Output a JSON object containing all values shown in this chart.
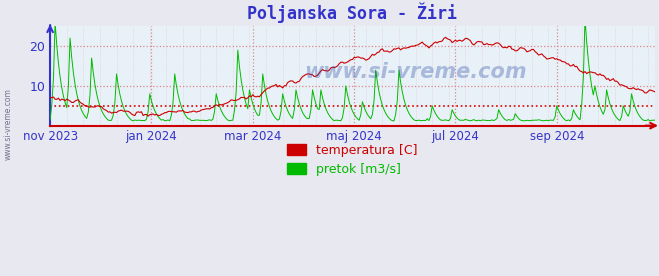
{
  "title": "Poljanska Sora - Žiri",
  "title_color": "#3333cc",
  "title_fontsize": 12,
  "bg_color": "#e8e8f0",
  "plot_bg_color": "#e8f0f8",
  "temp_color": "#cc0000",
  "flow_color": "#00bb00",
  "hline_color": "#dd0000",
  "hline_y": 5.0,
  "grid_color": "#dd8888",
  "ylim": [
    0,
    25
  ],
  "yticks": [
    10,
    20
  ],
  "xlabel_color": "#3333cc",
  "ylabel_color": "#3333cc",
  "x_labels": [
    "nov 2023",
    "jan 2024",
    "mar 2024",
    "maj 2024",
    "jul 2024",
    "sep 2024"
  ],
  "watermark_side": "www.si-vreme.com",
  "watermark_center": "www.si-vreme.com",
  "legend_temp": "temperatura [C]",
  "legend_flow": "pretok [m3/s]",
  "n_points": 365,
  "figsize": [
    6.59,
    2.76
  ],
  "dpi": 100,
  "left_spine_color": "#3333cc",
  "bottom_spine_color": "#cc0000"
}
